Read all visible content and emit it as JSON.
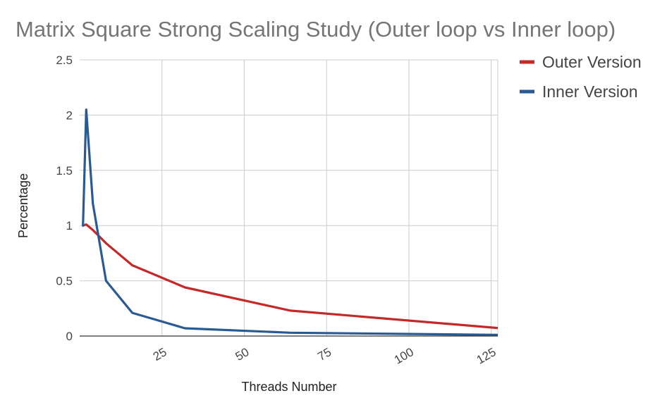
{
  "chart_data": {
    "type": "line",
    "title": "Matrix Square Strong Scaling Study (Outer loop vs Inner loop)",
    "xlabel": "Threads Number",
    "ylabel": "Percentage",
    "xlim": [
      0,
      127
    ],
    "ylim": [
      0,
      2.5
    ],
    "x_ticks": [
      25,
      50,
      75,
      100,
      125
    ],
    "x_tick_labels": [
      "25",
      "50",
      "75",
      "100",
      "125"
    ],
    "y_ticks": [
      0,
      0.5,
      1,
      1.5,
      2,
      2.5
    ],
    "y_tick_labels": [
      "0",
      "0.5",
      "1",
      "1.5",
      "2",
      "2.5"
    ],
    "grid": true,
    "legend_position": "right",
    "series": [
      {
        "name": "Outer Version",
        "color": "#c62828",
        "points": [
          {
            "x": 1,
            "y": 1.0
          },
          {
            "x": 2,
            "y": 1.01
          },
          {
            "x": 4,
            "y": 0.96
          },
          {
            "x": 8,
            "y": 0.84
          },
          {
            "x": 16,
            "y": 0.64
          },
          {
            "x": 32,
            "y": 0.44
          },
          {
            "x": 64,
            "y": 0.23
          },
          {
            "x": 128,
            "y": 0.07
          }
        ]
      },
      {
        "name": "Inner Version",
        "color": "#2a5a93",
        "points": [
          {
            "x": 1,
            "y": 1.0
          },
          {
            "x": 2,
            "y": 2.05
          },
          {
            "x": 4,
            "y": 1.2
          },
          {
            "x": 8,
            "y": 0.5
          },
          {
            "x": 16,
            "y": 0.21
          },
          {
            "x": 32,
            "y": 0.07
          },
          {
            "x": 64,
            "y": 0.03
          },
          {
            "x": 128,
            "y": 0.01
          }
        ]
      }
    ]
  }
}
